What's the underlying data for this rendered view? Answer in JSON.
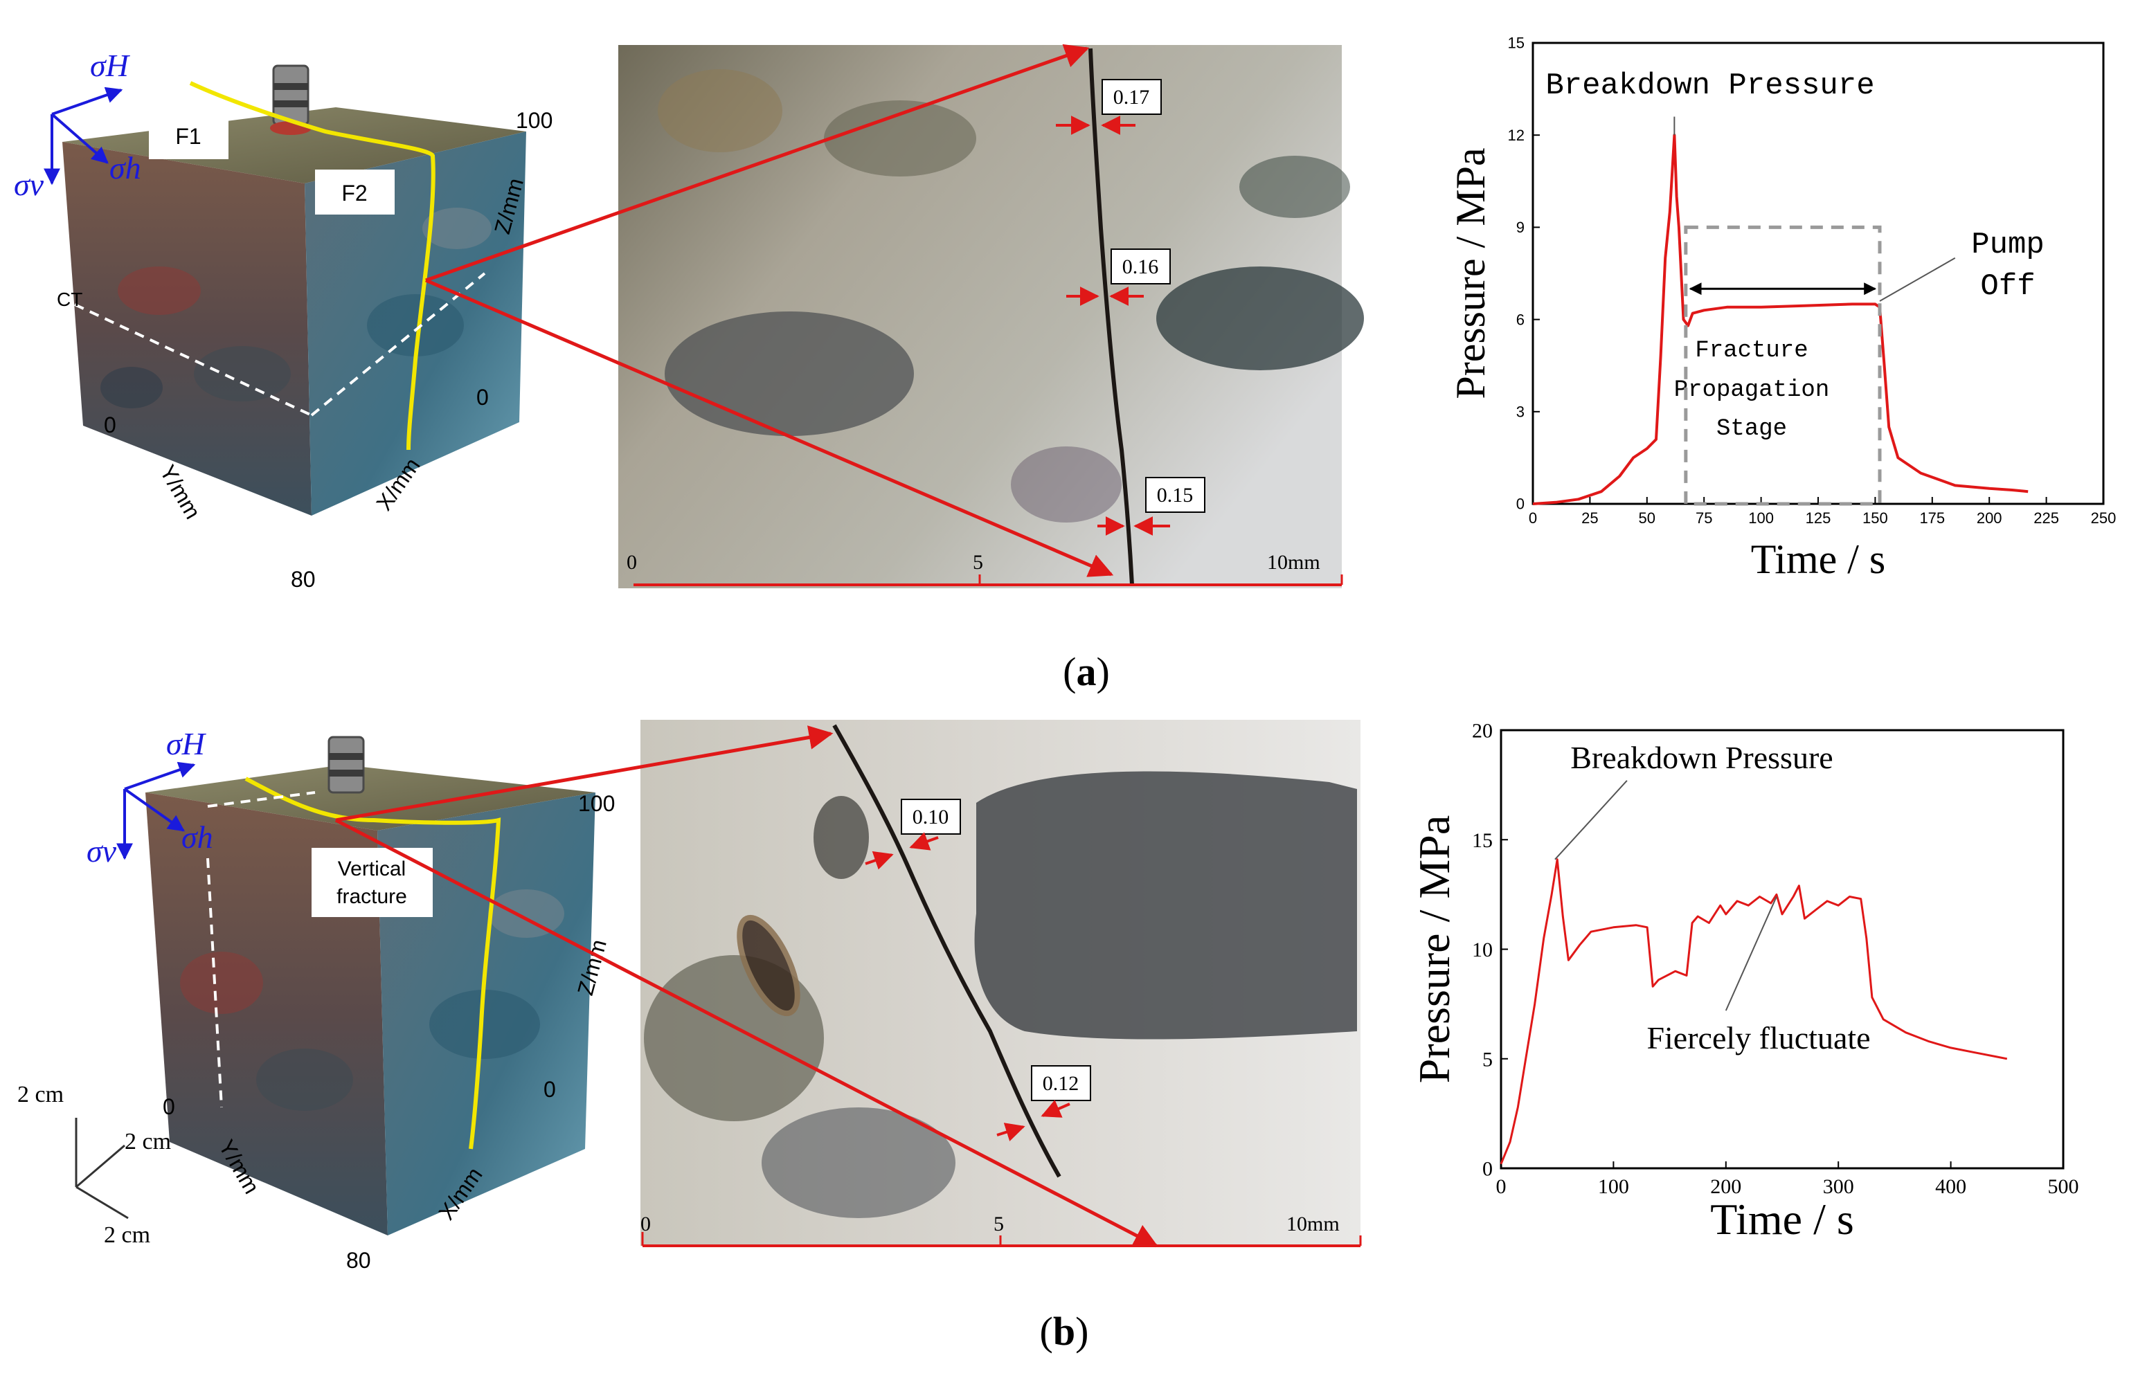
{
  "panels": [
    {
      "label_open": "(",
      "label_letter": "a",
      "label_close": ")",
      "specimen": {
        "stress_h_max": "σH",
        "stress_h_min": "σh",
        "stress_v": "σv",
        "face_labels": [
          "F1",
          "F2"
        ],
        "ct_label": "CT",
        "z_axis": "Z/mm",
        "x_axis": "X/mm",
        "y_axis": "Y/mm",
        "z_max": "100",
        "x_zero": "0",
        "y_zero": "0",
        "y_max": "80"
      },
      "micro": {
        "scale_labels": [
          "0",
          "5",
          "10mm"
        ],
        "widths": [
          "0.17",
          "0.16",
          "0.15"
        ]
      },
      "chart_annotations": {
        "breakdown": "Breakdown Pressure",
        "pump_off_line1": "Pump",
        "pump_off_line2": "Off",
        "stage_line1": "Fracture",
        "stage_line2": "Propagation",
        "stage_line3": "Stage"
      }
    },
    {
      "label_open": "(",
      "label_letter": "b",
      "label_close": ")",
      "specimen": {
        "stress_h_max": "σH",
        "stress_h_min": "σh",
        "stress_v": "σv",
        "fracture_line1": "Vertical",
        "fracture_line2": "fracture",
        "z_axis": "Z/mm",
        "x_axis": "X/mm",
        "y_axis": "Y/mm",
        "z_max": "100",
        "x_zero": "0",
        "y_zero": "0",
        "y_max": "80",
        "scale_bar": [
          "2 cm",
          "2 cm",
          "2 cm"
        ]
      },
      "micro": {
        "scale_labels": [
          "0",
          "5",
          "10mm"
        ],
        "widths": [
          "0.10",
          "0.12"
        ]
      },
      "chart_annotations": {
        "breakdown": "Breakdown Pressure",
        "fluctuate": "Fiercely fluctuate"
      }
    }
  ],
  "colors": {
    "accent_red": "#e01818",
    "fracture_yellow": "#f2e600",
    "stress_blue": "#1a1adc",
    "grid_gray": "#9a9a9a"
  },
  "chart_data": [
    {
      "type": "line",
      "xlabel": "Time / s",
      "ylabel": "Pressure / MPa",
      "xlim": [
        0,
        250
      ],
      "ylim": [
        0,
        15
      ],
      "xticks": [
        0,
        25,
        50,
        75,
        100,
        125,
        150,
        175,
        200,
        225,
        250
      ],
      "yticks": [
        0,
        3,
        6,
        9,
        12,
        15
      ],
      "series": [
        {
          "x": [
            0,
            10,
            20,
            30,
            38,
            44,
            50,
            54,
            56,
            58,
            60,
            62,
            63,
            64,
            65,
            66,
            68,
            70,
            75,
            85,
            100,
            120,
            140,
            150,
            152,
            154,
            156,
            160,
            170,
            185,
            200,
            210,
            217
          ],
          "y": [
            0.0,
            0.05,
            0.15,
            0.4,
            0.9,
            1.5,
            1.8,
            2.1,
            4.8,
            8.0,
            9.5,
            12.0,
            10.0,
            9.0,
            7.5,
            6.0,
            5.8,
            6.2,
            6.3,
            6.4,
            6.4,
            6.45,
            6.5,
            6.5,
            6.4,
            4.5,
            2.5,
            1.5,
            1.0,
            0.6,
            0.5,
            0.45,
            0.4
          ]
        }
      ]
    },
    {
      "type": "line",
      "xlabel": "Time / s",
      "ylabel": "Pressure / MPa",
      "xlim": [
        0,
        500
      ],
      "ylim": [
        0,
        20
      ],
      "xticks": [
        0,
        100,
        200,
        300,
        400,
        500
      ],
      "yticks": [
        0,
        5,
        10,
        15,
        20
      ],
      "series": [
        {
          "x": [
            0,
            8,
            15,
            22,
            30,
            38,
            45,
            50,
            55,
            60,
            70,
            80,
            100,
            120,
            130,
            135,
            140,
            155,
            165,
            170,
            175,
            185,
            195,
            200,
            210,
            220,
            230,
            240,
            245,
            250,
            260,
            265,
            270,
            280,
            290,
            300,
            310,
            320,
            325,
            330,
            340,
            360,
            380,
            400,
            420,
            440,
            450
          ],
          "y": [
            0.2,
            1.2,
            2.8,
            5.0,
            7.5,
            10.5,
            12.5,
            14.1,
            11.5,
            9.5,
            10.2,
            10.8,
            11.0,
            11.1,
            11.0,
            8.3,
            8.6,
            9.0,
            8.8,
            11.2,
            11.5,
            11.2,
            12.0,
            11.6,
            12.2,
            12.0,
            12.4,
            12.1,
            12.5,
            11.6,
            12.4,
            12.9,
            11.4,
            11.8,
            12.2,
            12.0,
            12.4,
            12.3,
            10.5,
            7.8,
            6.8,
            6.2,
            5.8,
            5.5,
            5.3,
            5.1,
            5.0
          ]
        }
      ]
    }
  ]
}
